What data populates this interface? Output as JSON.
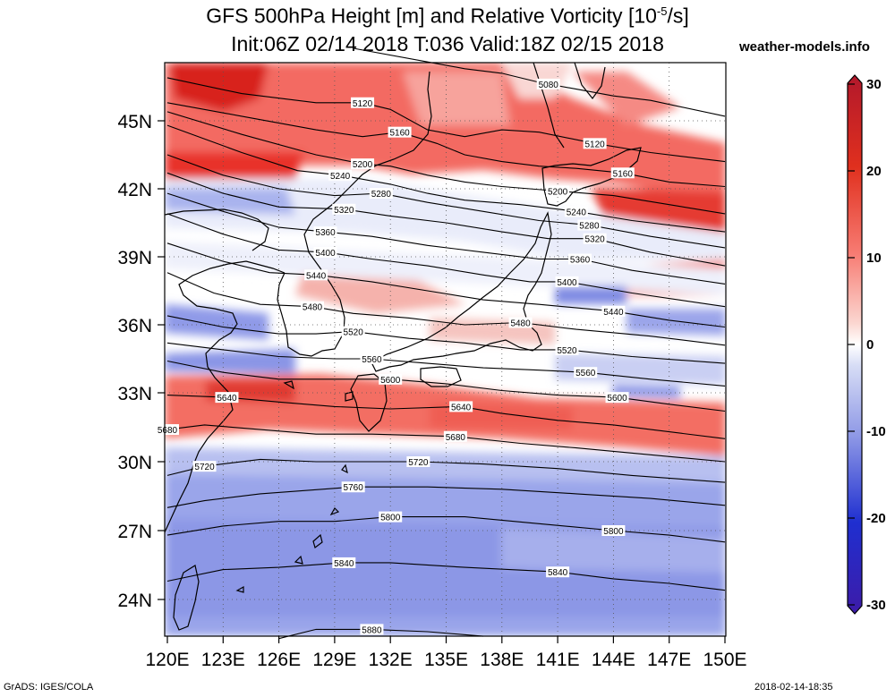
{
  "title_line1": "GFS 500hPa Height [m] and Relative Vorticity [10",
  "title_exp": "-5",
  "title_tail": "/s]",
  "title_line2": "Init:06Z 02/14 2018 T:036 Valid:18Z 02/15 2018",
  "site": "weather-models.info",
  "footer_left": "GrADS: IGES/COLA",
  "footer_right": "2018-02-14-18:35",
  "map": {
    "lon_range": [
      120,
      150
    ],
    "lat_range": [
      22.5,
      47.8
    ],
    "lon_ticks": [
      "120E",
      "123E",
      "126E",
      "129E",
      "132E",
      "135E",
      "138E",
      "141E",
      "144E",
      "147E",
      "150E"
    ],
    "lat_ticks": [
      {
        "label": "24N",
        "lat": 24
      },
      {
        "label": "27N",
        "lat": 27
      },
      {
        "label": "30N",
        "lat": 30
      },
      {
        "label": "33N",
        "lat": 33
      },
      {
        "label": "36N",
        "lat": 36
      },
      {
        "label": "39N",
        "lat": 39
      },
      {
        "label": "42N",
        "lat": 42
      },
      {
        "label": "45N",
        "lat": 45
      }
    ],
    "contours": [
      {
        "value": "5080",
        "label_lons": [
          140.5
        ],
        "pts": [
          [
            130,
            48.2
          ],
          [
            134,
            47.6
          ],
          [
            136,
            47.3
          ],
          [
            138,
            47.1
          ],
          [
            140,
            46.7
          ],
          [
            142,
            46.4
          ],
          [
            144,
            46.1
          ],
          [
            146,
            45.9
          ],
          [
            150,
            45.2
          ]
        ]
      },
      {
        "value": "5120",
        "label_lons": [
          130.5,
          143
        ],
        "pts": [
          [
            120,
            46.9
          ],
          [
            124,
            46.2
          ],
          [
            128,
            45.8
          ],
          [
            130.5,
            45.8
          ],
          [
            132,
            45.5
          ],
          [
            134,
            44.6
          ],
          [
            136,
            44.3
          ],
          [
            138,
            44.6
          ],
          [
            140,
            44.5
          ],
          [
            143,
            44.0
          ],
          [
            146,
            43.6
          ],
          [
            150,
            43.2
          ]
        ]
      },
      {
        "value": "5160",
        "label_lons": [
          132.5,
          144.5
        ],
        "pts": [
          [
            120,
            45.8
          ],
          [
            124,
            45.2
          ],
          [
            128,
            44.6
          ],
          [
            130.5,
            44.3
          ],
          [
            132.5,
            44.5
          ],
          [
            134.5,
            44.0
          ],
          [
            136,
            43.5
          ],
          [
            138,
            43.2
          ],
          [
            140,
            43.0
          ],
          [
            142,
            42.9
          ],
          [
            144.5,
            42.7
          ],
          [
            147,
            42.3
          ],
          [
            150,
            42.1
          ]
        ]
      },
      {
        "value": "5200",
        "label_lons": [
          130.5,
          141
        ]
      },
      {
        "value": "5240",
        "label_lons": [
          129.3,
          142
        ]
      },
      {
        "value": "5280",
        "label_lons": [
          131.5,
          142.7
        ]
      },
      {
        "value": "5320",
        "label_lons": [
          129.5,
          143
        ]
      },
      {
        "value": "5360",
        "label_lons": [
          128.5,
          142.2
        ]
      },
      {
        "value": "5400",
        "label_lons": [
          128.5,
          141.5
        ]
      },
      {
        "value": "5440",
        "label_lons": [
          128,
          144
        ]
      },
      {
        "value": "5480",
        "label_lons": [
          127.8,
          139
        ]
      },
      {
        "value": "5520",
        "label_lons": [
          130,
          141.5
        ]
      },
      {
        "value": "5560",
        "label_lons": [
          131,
          142.5
        ]
      },
      {
        "value": "5600",
        "label_lons": [
          132,
          144.2
        ]
      },
      {
        "value": "5640",
        "label_lons": [
          123.2,
          135.8
        ]
      },
      {
        "value": "5680",
        "label_lons": [
          120,
          135.5
        ]
      },
      {
        "value": "5720",
        "label_lons": [
          122,
          133.5
        ]
      },
      {
        "value": "5760",
        "label_lons": [
          130
        ]
      },
      {
        "value": "5800",
        "label_lons": [
          132,
          144
        ]
      },
      {
        "value": "5840",
        "label_lons": [
          129.5,
          141
        ]
      },
      {
        "value": "5880",
        "label_lons": [
          131
        ]
      }
    ]
  },
  "colorbar": {
    "ticks": [
      {
        "label": "30",
        "v": 30
      },
      {
        "label": "20",
        "v": 20
      },
      {
        "label": "10",
        "v": 10
      },
      {
        "label": "0",
        "v": 0
      },
      {
        "label": "-10",
        "v": -10
      },
      {
        "label": "-20",
        "v": -20
      },
      {
        "label": "-30",
        "v": -30
      }
    ]
  }
}
